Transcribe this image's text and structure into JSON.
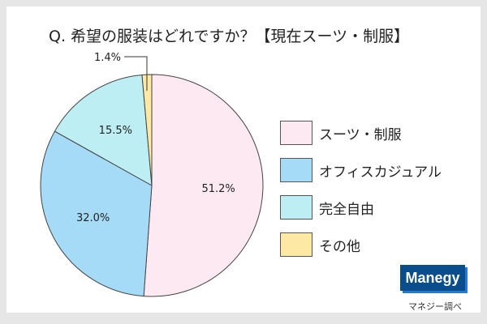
{
  "chart_data": {
    "type": "pie",
    "title": "Q. 希望の服装はどれですか？【現在スーツ・制服】",
    "categories": [
      "スーツ・制服",
      "オフィスカジュアル",
      "完全自由",
      "その他"
    ],
    "values": [
      51.2,
      32.0,
      15.5,
      1.4
    ],
    "labels": [
      "51.2%",
      "32.0%",
      "15.5%",
      "1.4%"
    ],
    "colors": [
      "#fde9f2",
      "#a6dbf8",
      "#bdeef3",
      "#fde9a4"
    ],
    "legend_position": "right"
  },
  "logo": "Manegy",
  "source": "マネジー調べ"
}
